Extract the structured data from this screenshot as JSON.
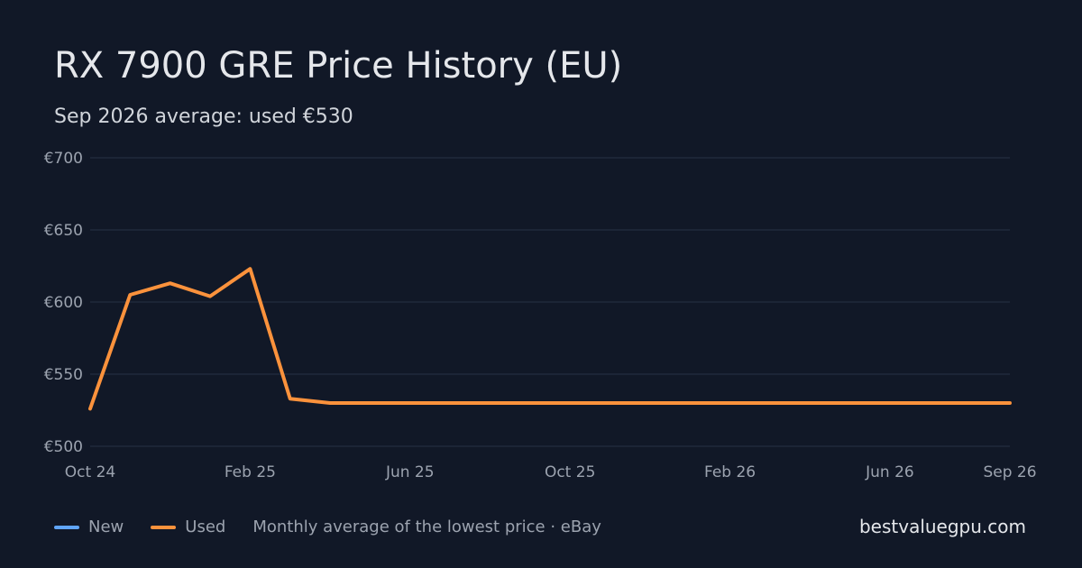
{
  "header": {
    "title": "RX 7900 GRE Price History (EU)",
    "subtitle": "Sep 2026 average: used €530"
  },
  "legend": {
    "items": [
      {
        "label": "New",
        "color": "#60a5fa"
      },
      {
        "label": "Used",
        "color": "#fb923c"
      }
    ],
    "note": "Monthly average of the lowest price · eBay"
  },
  "footer": {
    "site": "bestvaluegpu.com"
  },
  "colors": {
    "background": "#111827",
    "grid": "#263244",
    "used_line": "#fb923c",
    "new_line": "#60a5fa"
  },
  "chart_data": {
    "type": "line",
    "title": "RX 7900 GRE Price History (EU)",
    "subtitle": "Sep 2026 average: used €530",
    "x": [
      "Oct 24",
      "Nov 24",
      "Dec 24",
      "Jan 25",
      "Feb 25",
      "Mar 25",
      "Apr 25",
      "May 25",
      "Jun 25",
      "Jul 25",
      "Aug 25",
      "Sep 25",
      "Oct 25",
      "Nov 25",
      "Dec 25",
      "Jan 26",
      "Feb 26",
      "Mar 26",
      "Apr 26",
      "May 26",
      "Jun 26",
      "Jul 26",
      "Aug 26",
      "Sep 26"
    ],
    "x_tick_labels": [
      "Oct 24",
      "Feb 25",
      "Jun 25",
      "Oct 25",
      "Feb 26",
      "Jun 26",
      "Sep 26"
    ],
    "y_ticks": [
      {
        "value": 500,
        "label": "€500"
      },
      {
        "value": 550,
        "label": "€550"
      },
      {
        "value": 600,
        "label": "€600"
      },
      {
        "value": 650,
        "label": "€650"
      },
      {
        "value": 700,
        "label": "€700"
      }
    ],
    "ylim": [
      500,
      700
    ],
    "grid": true,
    "legend_position": "bottom-left",
    "series": [
      {
        "name": "Used",
        "color": "#fb923c",
        "values": [
          526,
          605,
          613,
          604,
          623,
          533,
          530,
          530,
          530,
          530,
          530,
          530,
          530,
          530,
          530,
          530,
          530,
          530,
          530,
          530,
          530,
          530,
          530,
          530
        ]
      }
    ]
  }
}
